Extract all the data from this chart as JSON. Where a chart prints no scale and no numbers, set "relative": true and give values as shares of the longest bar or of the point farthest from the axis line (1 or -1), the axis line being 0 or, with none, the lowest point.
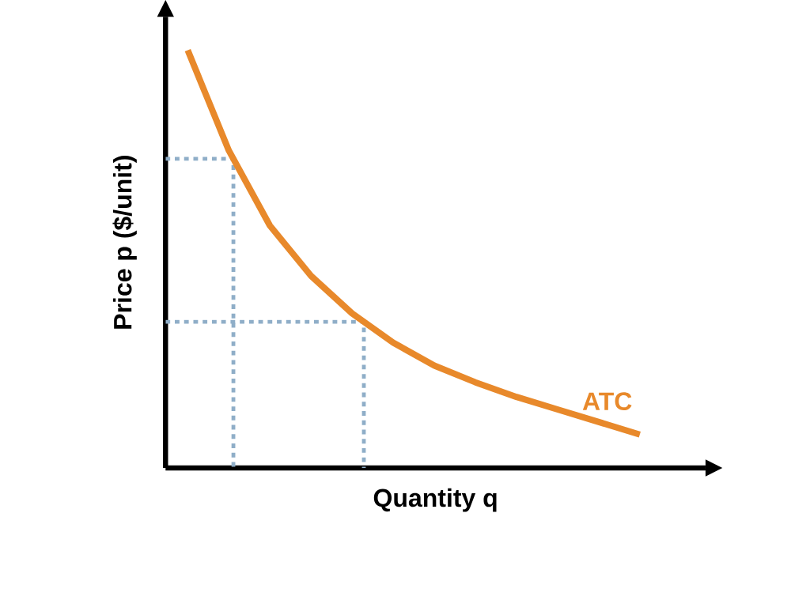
{
  "chart_data": {
    "type": "line",
    "relative": true,
    "xlabel": "Quantity q",
    "ylabel": "Price p ($/unit)",
    "marker": "none",
    "categories": [
      null,
      null,
      null,
      null,
      null,
      null,
      null,
      null,
      null,
      null,
      null,
      null
    ],
    "series": [
      {
        "name": "ATC",
        "color": "#e8892b",
        "values": [
          1.0,
          0.76,
          0.58,
          0.46,
          0.37,
          0.3,
          0.245,
          0.205,
          0.17,
          0.14,
          0.11,
          0.08
        ]
      }
    ],
    "ref_lines": [
      {
        "axis": "y",
        "value": 0.74,
        "color": "#8faec8",
        "line_style": "dotted"
      },
      {
        "axis": "y",
        "value": 0.35,
        "color": "#8faec8",
        "line_style": "dotted"
      }
    ]
  }
}
